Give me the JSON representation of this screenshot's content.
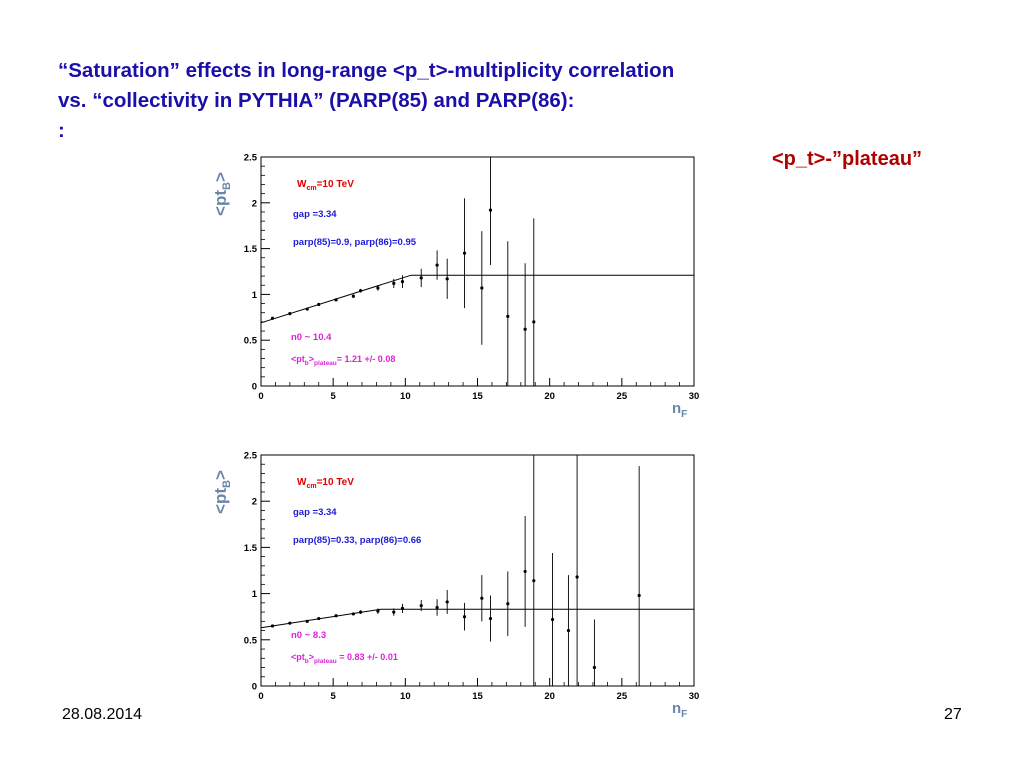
{
  "slide": {
    "title_line1": "“Saturation”  effects in long-range <p_t>-multiplicity correlation",
    "title_line2": "vs. “collectivity in PYTHIA” (PARP(85) and PARP(86):",
    "title_line3": ":",
    "annotation": "<p_t>-”plateau”",
    "date": "28.08.2014",
    "page_number": "27",
    "colors": {
      "title": "#1a0fa8",
      "annotation": "#b00000",
      "axis_label": "#6a86a8",
      "red_text": "#e00000",
      "blue_text": "#1d1ad6",
      "magenta_text": "#e020d8"
    }
  },
  "chart_data": [
    {
      "type": "scatter",
      "ylabel_main": "<pt",
      "ylabel_sub": "B",
      "ylabel_close": ">",
      "xlabel_main": "n",
      "xlabel_sub": "F",
      "xlim": [
        0,
        30
      ],
      "ylim": [
        0,
        2.5
      ],
      "x_ticks": [
        "0",
        "5",
        "10",
        "15",
        "20",
        "25",
        "30"
      ],
      "y_ticks": [
        "0",
        "0.5",
        "1",
        "1.5",
        "2",
        "2.5"
      ],
      "legend": {
        "energy_main": "W",
        "energy_sub": "cm",
        "energy_value": "=10 TeV",
        "gap": "gap =3.34",
        "parp": "parp(85)=0.9, parp(86)=0.95",
        "n0": "n0 ~ 10.4",
        "plateau_main": "<pt",
        "plateau_sub1": "b",
        "plateau_close": ">",
        "plateau_sub2": "plateau",
        "plateau_value": "= 1.21 +/- 0.08"
      },
      "fit_line": [
        [
          0,
          0.69
        ],
        [
          10.4,
          1.21
        ],
        [
          30,
          1.21
        ]
      ],
      "points": [
        {
          "x": 0.8,
          "y": 0.74,
          "err": 0.01
        },
        {
          "x": 2.0,
          "y": 0.79,
          "err": 0.01
        },
        {
          "x": 3.2,
          "y": 0.84,
          "err": 0.01
        },
        {
          "x": 4.0,
          "y": 0.89,
          "err": 0.01
        },
        {
          "x": 5.2,
          "y": 0.94,
          "err": 0.01
        },
        {
          "x": 6.4,
          "y": 0.98,
          "err": 0.02
        },
        {
          "x": 6.9,
          "y": 1.04,
          "err": 0.02
        },
        {
          "x": 8.1,
          "y": 1.07,
          "err": 0.03
        },
        {
          "x": 9.2,
          "y": 1.12,
          "err": 0.05
        },
        {
          "x": 9.8,
          "y": 1.14,
          "err": 0.07
        },
        {
          "x": 11.1,
          "y": 1.18,
          "err": 0.1
        },
        {
          "x": 12.2,
          "y": 1.32,
          "err": 0.16
        },
        {
          "x": 12.9,
          "y": 1.17,
          "err": 0.22
        },
        {
          "x": 14.1,
          "y": 1.45,
          "err": 0.6
        },
        {
          "x": 15.3,
          "y": 1.07,
          "err": 0.62
        },
        {
          "x": 15.9,
          "y": 1.92,
          "err": 0.6
        },
        {
          "x": 17.1,
          "y": 0.76,
          "err": 0.82
        },
        {
          "x": 18.3,
          "y": 0.62,
          "err": 0.72
        },
        {
          "x": 18.9,
          "y": 0.7,
          "err": 1.13
        }
      ]
    },
    {
      "type": "scatter",
      "ylabel_main": "<pt",
      "ylabel_sub": "B",
      "ylabel_close": ">",
      "xlabel_main": "n",
      "xlabel_sub": "F",
      "xlim": [
        0,
        30
      ],
      "ylim": [
        0,
        2.5
      ],
      "x_ticks": [
        "0",
        "5",
        "10",
        "15",
        "20",
        "25",
        "30"
      ],
      "y_ticks": [
        "0",
        "0.5",
        "1",
        "1.5",
        "2",
        "2.5"
      ],
      "legend": {
        "energy_main": "W",
        "energy_sub": "cm",
        "energy_value": "=10 TeV",
        "gap": "gap =3.34",
        "parp": "parp(85)=0.33, parp(86)=0.66",
        "n0": "n0 ~ 8.3",
        "plateau_main": "<pt",
        "plateau_sub1": "b",
        "plateau_close": ">",
        "plateau_sub2": "plateau",
        "plateau_value": " = 0.83 +/- 0.01"
      },
      "fit_line": [
        [
          0,
          0.63
        ],
        [
          8.3,
          0.83
        ],
        [
          30,
          0.83
        ]
      ],
      "points": [
        {
          "x": 0.8,
          "y": 0.65,
          "err": 0.01
        },
        {
          "x": 2.0,
          "y": 0.68,
          "err": 0.01
        },
        {
          "x": 3.2,
          "y": 0.7,
          "err": 0.01
        },
        {
          "x": 4.0,
          "y": 0.73,
          "err": 0.01
        },
        {
          "x": 5.2,
          "y": 0.76,
          "err": 0.01
        },
        {
          "x": 6.4,
          "y": 0.78,
          "err": 0.01
        },
        {
          "x": 6.9,
          "y": 0.8,
          "err": 0.02
        },
        {
          "x": 8.1,
          "y": 0.81,
          "err": 0.03
        },
        {
          "x": 9.2,
          "y": 0.8,
          "err": 0.04
        },
        {
          "x": 9.8,
          "y": 0.84,
          "err": 0.05
        },
        {
          "x": 11.1,
          "y": 0.87,
          "err": 0.06
        },
        {
          "x": 12.2,
          "y": 0.85,
          "err": 0.09
        },
        {
          "x": 12.9,
          "y": 0.91,
          "err": 0.13
        },
        {
          "x": 14.1,
          "y": 0.75,
          "err": 0.15
        },
        {
          "x": 15.3,
          "y": 0.95,
          "err": 0.25
        },
        {
          "x": 15.9,
          "y": 0.73,
          "err": 0.25
        },
        {
          "x": 17.1,
          "y": 0.89,
          "err": 0.35
        },
        {
          "x": 18.3,
          "y": 1.24,
          "err": 0.6
        },
        {
          "x": 18.9,
          "y": 1.14,
          "err": 1.36
        },
        {
          "x": 20.2,
          "y": 0.72,
          "err": 0.72
        },
        {
          "x": 21.3,
          "y": 0.6,
          "err": 0.6
        },
        {
          "x": 21.9,
          "y": 1.18,
          "err": 1.32
        },
        {
          "x": 23.1,
          "y": 0.2,
          "err": 0.52
        },
        {
          "x": 26.2,
          "y": 0.98,
          "err": 1.4
        }
      ]
    }
  ]
}
